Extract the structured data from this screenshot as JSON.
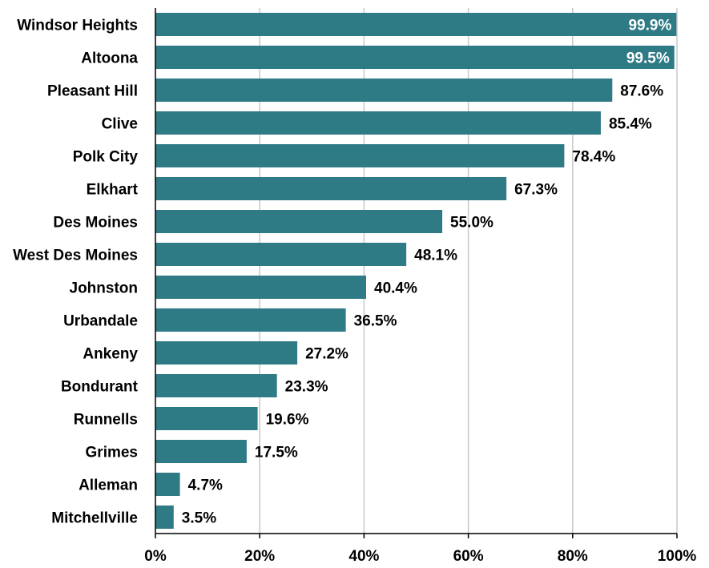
{
  "chart_data": {
    "type": "bar",
    "orientation": "horizontal",
    "title": "",
    "xlabel": "",
    "ylabel": "",
    "categories": [
      "Windsor Heights",
      "Altoona",
      "Pleasant Hill",
      "Clive",
      "Polk City",
      "Elkhart",
      "Des Moines",
      "West Des Moines",
      "Johnston",
      "Urbandale",
      "Ankeny",
      "Bondurant",
      "Runnells",
      "Grimes",
      "Alleman",
      "Mitchellville"
    ],
    "values": [
      99.9,
      99.5,
      87.6,
      85.4,
      78.4,
      67.3,
      55.0,
      48.1,
      40.4,
      36.5,
      27.2,
      23.3,
      19.6,
      17.5,
      4.7,
      3.5
    ],
    "value_labels": [
      "99.9%",
      "99.5%",
      "87.6%",
      "85.4%",
      "78.4%",
      "67.3%",
      "55.0%",
      "48.1%",
      "40.4%",
      "36.5%",
      "27.2%",
      "23.3%",
      "19.6%",
      "17.5%",
      "4.7%",
      "3.5%"
    ],
    "xlim": [
      0,
      100
    ],
    "x_ticks": [
      0,
      20,
      40,
      60,
      80,
      100
    ],
    "x_tick_labels": [
      "0%",
      "20%",
      "40%",
      "60%",
      "80%",
      "100%"
    ],
    "grid": true,
    "legend": "none",
    "colors": {
      "bar": "#2e7a85",
      "label_inside": "#ffffff",
      "label_outside": "#000000",
      "grid": "#c8c8c8"
    }
  }
}
